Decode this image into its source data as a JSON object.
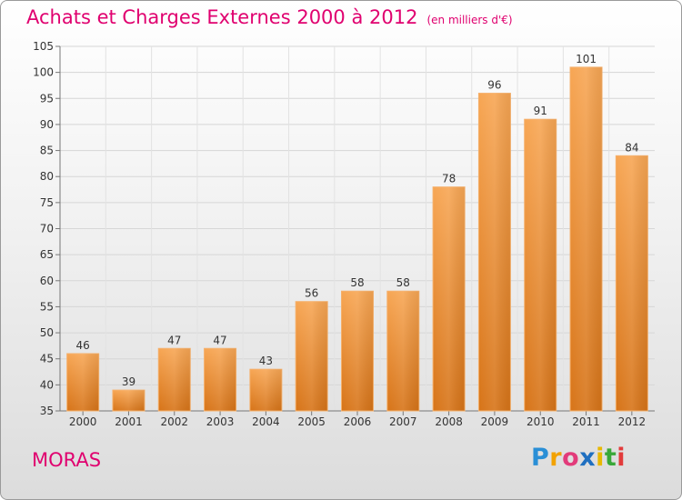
{
  "title": "Achats et Charges Externes 2000 à 2012",
  "unit": "(en milliers d'€)",
  "city": "MORAS",
  "logo": {
    "letters": [
      {
        "ch": "P",
        "color": "#2a8fd6"
      },
      {
        "ch": "r",
        "color": "#f2a200"
      },
      {
        "ch": "o",
        "color": "#e23b7a"
      },
      {
        "ch": "x",
        "color": "#1f6fc0"
      },
      {
        "ch": "i",
        "color": "#e8b800"
      },
      {
        "ch": "t",
        "color": "#39a839"
      },
      {
        "ch": "i",
        "color": "#e23b3b"
      }
    ]
  },
  "colors": {
    "bar_top": "#f7a654",
    "bar_bottom": "#d77418",
    "title": "#e0006f",
    "label": "#333333"
  },
  "chart_data": {
    "type": "bar",
    "categories": [
      "2000",
      "2001",
      "2002",
      "2003",
      "2004",
      "2005",
      "2006",
      "2007",
      "2008",
      "2009",
      "2010",
      "2011",
      "2012"
    ],
    "values": [
      46,
      39,
      47,
      47,
      43,
      56,
      58,
      58,
      78,
      96,
      91,
      101,
      84
    ],
    "ylim": [
      35,
      105
    ],
    "yticks": [
      35,
      40,
      45,
      50,
      55,
      60,
      65,
      70,
      75,
      80,
      85,
      90,
      95,
      100,
      105
    ],
    "grid": true
  }
}
